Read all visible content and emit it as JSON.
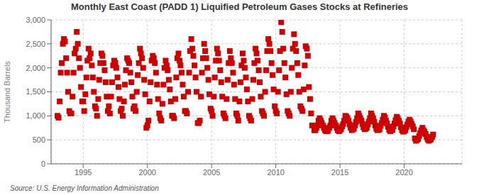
{
  "chart_data": {
    "type": "scatter",
    "title": "Monthly East Coast (PADD 1) Liquified Petroleum Gases Stocks at Refineries",
    "ylabel": "Thousand Barrels",
    "annotations": [
      "Source: U.S. Energy Information Administration"
    ],
    "color": "#cc0000",
    "marker": "square",
    "grid": true,
    "xlim": [
      1992.5,
      2024.5
    ],
    "ylim": [
      0,
      3000
    ],
    "xticks": [
      1995,
      2000,
      2005,
      2010,
      2015,
      2020
    ],
    "yticks": [
      0,
      500,
      {
        "value": 1000,
        "label": "1,000"
      },
      {
        "value": 1500,
        "label": "1,500"
      },
      {
        "value": 2000,
        "label": "2,000"
      },
      {
        "value": 2500,
        "label": "2,500"
      },
      {
        "value": 3000,
        "label": "3,000"
      }
    ],
    "x": [
      1993.0,
      1993.08,
      1993.17,
      1993.25,
      1993.33,
      1993.42,
      1993.5,
      1993.58,
      1993.67,
      1993.75,
      1993.83,
      1993.92,
      1994.0,
      1994.08,
      1994.17,
      1994.25,
      1994.33,
      1994.42,
      1994.5,
      1994.58,
      1994.67,
      1994.75,
      1994.83,
      1994.92,
      1995.0,
      1995.08,
      1995.17,
      1995.25,
      1995.33,
      1995.42,
      1995.5,
      1995.58,
      1995.67,
      1995.75,
      1995.83,
      1995.92,
      1996.0,
      1996.08,
      1996.17,
      1996.25,
      1996.33,
      1996.42,
      1996.5,
      1996.58,
      1996.67,
      1996.75,
      1996.83,
      1996.92,
      1997.0,
      1997.08,
      1997.17,
      1997.25,
      1997.33,
      1997.42,
      1997.5,
      1997.58,
      1997.67,
      1997.75,
      1997.83,
      1997.92,
      1998.0,
      1998.08,
      1998.17,
      1998.25,
      1998.33,
      1998.42,
      1998.5,
      1998.58,
      1998.67,
      1998.75,
      1998.83,
      1998.92,
      1999.0,
      1999.08,
      1999.17,
      1999.25,
      1999.33,
      1999.42,
      1999.5,
      1999.58,
      1999.67,
      1999.75,
      1999.83,
      1999.92,
      2000.0,
      2000.08,
      2000.17,
      2000.25,
      2000.33,
      2000.42,
      2000.5,
      2000.58,
      2000.67,
      2000.75,
      2000.83,
      2000.92,
      2001.0,
      2001.08,
      2001.17,
      2001.25,
      2001.33,
      2001.42,
      2001.5,
      2001.58,
      2001.67,
      2001.75,
      2001.83,
      2001.92,
      2002.0,
      2002.08,
      2002.17,
      2002.25,
      2002.33,
      2002.42,
      2002.5,
      2002.58,
      2002.67,
      2002.75,
      2002.83,
      2002.92,
      2003.0,
      2003.08,
      2003.17,
      2003.25,
      2003.33,
      2003.42,
      2003.5,
      2003.58,
      2003.67,
      2003.75,
      2003.83,
      2003.92,
      2004.0,
      2004.08,
      2004.17,
      2004.25,
      2004.33,
      2004.42,
      2004.5,
      2004.58,
      2004.67,
      2004.75,
      2004.83,
      2004.92,
      2005.0,
      2005.08,
      2005.17,
      2005.25,
      2005.33,
      2005.42,
      2005.5,
      2005.58,
      2005.67,
      2005.75,
      2005.83,
      2005.92,
      2006.0,
      2006.08,
      2006.17,
      2006.25,
      2006.33,
      2006.42,
      2006.5,
      2006.58,
      2006.67,
      2006.75,
      2006.83,
      2006.92,
      2007.0,
      2007.08,
      2007.17,
      2007.25,
      2007.33,
      2007.42,
      2007.5,
      2007.58,
      2007.67,
      2007.75,
      2007.83,
      2007.92,
      2008.0,
      2008.08,
      2008.17,
      2008.25,
      2008.33,
      2008.42,
      2008.5,
      2008.58,
      2008.67,
      2008.75,
      2008.83,
      2008.92,
      2009.0,
      2009.08,
      2009.17,
      2009.25,
      2009.33,
      2009.42,
      2009.5,
      2009.58,
      2009.67,
      2009.75,
      2009.83,
      2009.92,
      2010.0,
      2010.08,
      2010.17,
      2010.25,
      2010.33,
      2010.42,
      2010.5,
      2010.58,
      2010.67,
      2010.75,
      2010.83,
      2010.92,
      2011.0,
      2011.08,
      2011.17,
      2011.25,
      2011.33,
      2011.42,
      2011.5,
      2011.58,
      2011.67,
      2011.75,
      2011.83,
      2011.92,
      2012.0,
      2012.08,
      2012.17,
      2012.25,
      2012.33,
      2012.42,
      2012.5,
      2012.58,
      2012.67,
      2012.75,
      2012.83,
      2013.0,
      2013.08,
      2013.17,
      2013.25,
      2013.33,
      2013.42,
      2013.5,
      2013.58,
      2013.67,
      2013.75,
      2013.83,
      2013.92,
      2014.0,
      2014.08,
      2014.17,
      2014.25,
      2014.33,
      2014.42,
      2014.5,
      2014.58,
      2014.67,
      2014.75,
      2014.83,
      2014.92,
      2015.0,
      2015.08,
      2015.17,
      2015.25,
      2015.33,
      2015.42,
      2015.5,
      2015.58,
      2015.67,
      2015.75,
      2015.83,
      2015.92,
      2016.0,
      2016.08,
      2016.17,
      2016.25,
      2016.33,
      2016.42,
      2016.5,
      2016.58,
      2016.67,
      2016.75,
      2016.83,
      2016.92,
      2017.0,
      2017.08,
      2017.17,
      2017.25,
      2017.33,
      2017.42,
      2017.5,
      2017.58,
      2017.67,
      2017.75,
      2017.83,
      2017.92,
      2018.0,
      2018.08,
      2018.17,
      2018.25,
      2018.33,
      2018.42,
      2018.5,
      2018.58,
      2018.67,
      2018.75,
      2018.83,
      2018.92,
      2019.0,
      2019.08,
      2019.17,
      2019.25,
      2019.33,
      2019.42,
      2019.5,
      2019.58,
      2019.67,
      2019.75,
      2019.83,
      2019.92,
      2020.0,
      2020.08,
      2020.17,
      2020.25,
      2020.33,
      2020.42,
      2020.5,
      2020.58,
      2020.67,
      2020.75,
      2020.83,
      2020.92,
      2021.0,
      2021.08,
      2021.17,
      2021.25,
      2021.33,
      2021.42,
      2021.5,
      2021.58,
      2021.67,
      2021.75,
      2021.83,
      2021.92,
      2022.0,
      2022.08,
      2022.17,
      2022.25
    ],
    "values": [
      1000,
      960,
      1300,
      1900,
      2100,
      2500,
      2600,
      2550,
      2200,
      1900,
      1500,
      1100,
      1050,
      1050,
      1400,
      1900,
      2300,
      2400,
      2750,
      2500,
      2200,
      2000,
      1600,
      1300,
      1300,
      1100,
      1450,
      1800,
      2150,
      2400,
      2200,
      2300,
      2050,
      1800,
      1500,
      1200,
      1150,
      1000,
      1350,
      1750,
      2100,
      2300,
      2250,
      2100,
      1950,
      1700,
      1400,
      1100,
      1200,
      1050,
      1400,
      1700,
      2050,
      2150,
      2100,
      2000,
      1800,
      1600,
      1350,
      1100,
      1150,
      1000,
      1300,
      1650,
      1950,
      2200,
      2150,
      2100,
      1900,
      1700,
      1400,
      1150,
      1200,
      1100,
      1500,
      1850,
      2100,
      2400,
      2300,
      2200,
      2000,
      1750,
      1450,
      750,
      800,
      900,
      1300,
      1700,
      2150,
      2250,
      2200,
      2100,
      1900,
      1650,
      1350,
      1050,
      950,
      900,
      1250,
      1650,
      2000,
      2150,
      2050,
      1950,
      1750,
      1550,
      1300,
      1000,
      1000,
      950,
      1350,
      1800,
      2200,
      2300,
      2150,
      2050,
      1900,
      1650,
      1400,
      1100,
      1100,
      1050,
      1500,
      1900,
      2350,
      2600,
      2400,
      2250,
      2050,
      1800,
      1500,
      850,
      850,
      900,
      1400,
      1900,
      2200,
      2500,
      2350,
      2200,
      2000,
      1750,
      1450,
      1150,
      1100,
      1000,
      1400,
      1800,
      2150,
      2400,
      2300,
      2150,
      1950,
      1700,
      1400,
      1050,
      1000,
      950,
      1350,
      1750,
      2100,
      2350,
      2200,
      2100,
      1900,
      1650,
      1350,
      1050,
      1000,
      900,
      1300,
      1700,
      2050,
      2300,
      2150,
      2000,
      1800,
      1550,
      1300,
      1000,
      950,
      900,
      1350,
      1750,
      2100,
      2400,
      2300,
      2150,
      1950,
      1700,
      1400,
      1100,
      1050,
      1000,
      1500,
      1950,
      2350,
      2600,
      2500,
      2350,
      2100,
      1850,
      1550,
      1200,
      1100,
      1050,
      1500,
      1950,
      2350,
      2950,
      2750,
      2400,
      2100,
      1800,
      1450,
      1100,
      1050,
      1000,
      1500,
      2000,
      2400,
      2700,
      2500,
      2350,
      2100,
      1850,
      1500,
      1200,
      1150,
      1100,
      1550,
      2050,
      2450,
      2400,
      2250,
      1600,
      1350,
      1050,
      800,
      700,
      700,
      750,
      800,
      900,
      950,
      900,
      850,
      800,
      750,
      700,
      680,
      680,
      700,
      750,
      800,
      900,
      950,
      900,
      850,
      800,
      750,
      700,
      680,
      700,
      720,
      780,
      830,
      900,
      1000,
      980,
      950,
      900,
      820,
      750,
      700,
      720,
      730,
      800,
      870,
      950,
      1050,
      1000,
      950,
      900,
      830,
      760,
      720,
      730,
      750,
      820,
      880,
      950,
      1050,
      1000,
      950,
      880,
      800,
      730,
      700,
      710,
      720,
      790,
      850,
      920,
      1000,
      960,
      900,
      840,
      770,
      710,
      680,
      700,
      710,
      780,
      840,
      910,
      980,
      950,
      900,
      840,
      760,
      700,
      670,
      680,
      700,
      760,
      820,
      880,
      920,
      880,
      830,
      780,
      720,
      530,
      480,
      500,
      520,
      580,
      640,
      700,
      750,
      700,
      670,
      620,
      560,
      510,
      480,
      500,
      510,
      560,
      610
    ]
  }
}
